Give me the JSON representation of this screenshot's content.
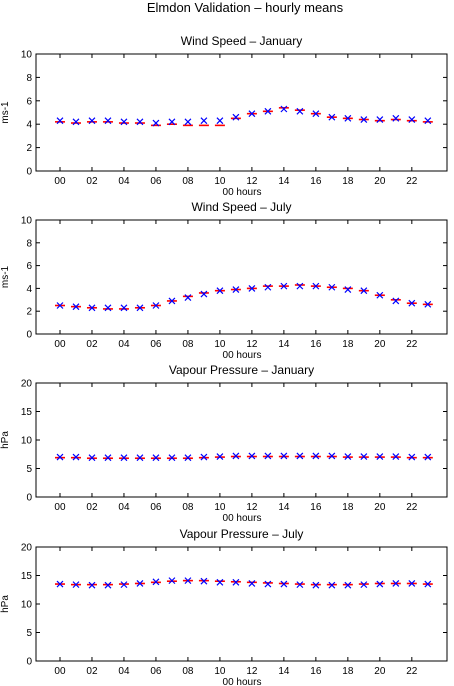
{
  "figure": {
    "title": "Elmdon Validation – hourly means"
  },
  "colors": {
    "series_a": "#ff0000",
    "series_b": "#0000ff",
    "axis": "#000000"
  },
  "chart_data": [
    {
      "type": "scatter",
      "title": "Wind Speed – January",
      "xlabel": "00 hours",
      "ylabel": "ms-1",
      "xlim": [
        -1.5,
        24.2
      ],
      "ylim": [
        0,
        10
      ],
      "yticks": [
        0,
        2,
        4,
        6,
        8,
        10
      ],
      "xticks": [
        0,
        2,
        4,
        6,
        8,
        10,
        12,
        14,
        16,
        18,
        20,
        22
      ],
      "xtick_labels": [
        "00",
        "02",
        "04",
        "06",
        "08",
        "10",
        "12",
        "14",
        "16",
        "18",
        "20",
        "22"
      ],
      "x": [
        0,
        1,
        2,
        3,
        4,
        5,
        6,
        7,
        8,
        9,
        10,
        11,
        12,
        13,
        14,
        15,
        16,
        17,
        18,
        19,
        20,
        21,
        22,
        23
      ],
      "series": [
        {
          "values": [
            4.2,
            4.1,
            4.2,
            4.2,
            4.1,
            4.1,
            3.9,
            4.0,
            3.9,
            3.9,
            3.9,
            4.5,
            4.9,
            5.1,
            5.4,
            5.2,
            4.9,
            4.6,
            4.5,
            4.4,
            4.3,
            4.4,
            4.3,
            4.2
          ],
          "color": "#ff0000",
          "marker": "line"
        },
        {
          "values": [
            4.3,
            4.2,
            4.3,
            4.3,
            4.2,
            4.2,
            4.1,
            4.2,
            4.2,
            4.3,
            4.3,
            4.6,
            4.9,
            5.1,
            5.3,
            5.1,
            4.9,
            4.6,
            4.5,
            4.4,
            4.4,
            4.5,
            4.4,
            4.3
          ],
          "color": "#0000ff",
          "marker": "x"
        }
      ],
      "grid": false
    },
    {
      "type": "scatter",
      "title": "Wind Speed – July",
      "xlabel": "00 hours",
      "ylabel": "ms-1",
      "xlim": [
        -1.5,
        24.2
      ],
      "ylim": [
        0,
        10
      ],
      "yticks": [
        0,
        2,
        4,
        6,
        8,
        10
      ],
      "xticks": [
        0,
        2,
        4,
        6,
        8,
        10,
        12,
        14,
        16,
        18,
        20,
        22
      ],
      "xtick_labels": [
        "00",
        "02",
        "04",
        "06",
        "08",
        "10",
        "12",
        "14",
        "16",
        "18",
        "20",
        "22"
      ],
      "x": [
        0,
        1,
        2,
        3,
        4,
        5,
        6,
        7,
        8,
        9,
        10,
        11,
        12,
        13,
        14,
        15,
        16,
        17,
        18,
        19,
        20,
        21,
        22,
        23
      ],
      "series": [
        {
          "values": [
            2.5,
            2.4,
            2.3,
            2.2,
            2.2,
            2.3,
            2.5,
            2.9,
            3.3,
            3.6,
            3.8,
            3.9,
            4.0,
            4.2,
            4.2,
            4.3,
            4.2,
            4.1,
            4.0,
            3.8,
            3.4,
            3.0,
            2.7,
            2.6
          ],
          "color": "#ff0000",
          "marker": "line"
        },
        {
          "values": [
            2.5,
            2.4,
            2.3,
            2.3,
            2.3,
            2.3,
            2.5,
            2.9,
            3.2,
            3.5,
            3.8,
            3.9,
            4.0,
            4.1,
            4.2,
            4.2,
            4.2,
            4.1,
            3.9,
            3.8,
            3.4,
            2.9,
            2.7,
            2.6
          ],
          "color": "#0000ff",
          "marker": "x"
        }
      ],
      "grid": false
    },
    {
      "type": "scatter",
      "title": "Vapour Pressure – January",
      "xlabel": "00 hours",
      "ylabel": "hPa",
      "xlim": [
        -1.5,
        24.2
      ],
      "ylim": [
        0,
        20
      ],
      "yticks": [
        0,
        5,
        10,
        15,
        20
      ],
      "xticks": [
        0,
        2,
        4,
        6,
        8,
        10,
        12,
        14,
        16,
        18,
        20,
        22
      ],
      "xtick_labels": [
        "00",
        "02",
        "04",
        "06",
        "08",
        "10",
        "12",
        "14",
        "16",
        "18",
        "20",
        "22"
      ],
      "x": [
        0,
        1,
        2,
        3,
        4,
        5,
        6,
        7,
        8,
        9,
        10,
        11,
        12,
        13,
        14,
        15,
        16,
        17,
        18,
        19,
        20,
        21,
        22,
        23
      ],
      "series": [
        {
          "values": [
            6.9,
            6.9,
            6.8,
            6.8,
            6.8,
            6.8,
            6.8,
            6.8,
            6.8,
            6.9,
            7.0,
            7.1,
            7.1,
            7.1,
            7.1,
            7.1,
            7.1,
            7.1,
            7.0,
            7.0,
            7.0,
            7.0,
            6.9,
            6.9
          ],
          "color": "#ff0000",
          "marker": "line"
        },
        {
          "values": [
            7.0,
            7.0,
            6.9,
            6.9,
            6.9,
            6.9,
            6.9,
            6.9,
            6.9,
            7.0,
            7.1,
            7.2,
            7.2,
            7.2,
            7.2,
            7.2,
            7.2,
            7.2,
            7.1,
            7.1,
            7.1,
            7.1,
            7.0,
            7.0
          ],
          "color": "#0000ff",
          "marker": "x"
        }
      ],
      "grid": false
    },
    {
      "type": "scatter",
      "title": "Vapour Pressure – July",
      "xlabel": "00 hours",
      "ylabel": "hPa",
      "xlim": [
        -1.5,
        24.2
      ],
      "ylim": [
        0,
        20
      ],
      "yticks": [
        0,
        5,
        10,
        15,
        20
      ],
      "xticks": [
        0,
        2,
        4,
        6,
        8,
        10,
        12,
        14,
        16,
        18,
        20,
        22
      ],
      "xtick_labels": [
        "00",
        "02",
        "04",
        "06",
        "08",
        "10",
        "12",
        "14",
        "16",
        "18",
        "20",
        "22"
      ],
      "x": [
        0,
        1,
        2,
        3,
        4,
        5,
        6,
        7,
        8,
        9,
        10,
        11,
        12,
        13,
        14,
        15,
        16,
        17,
        18,
        19,
        20,
        21,
        22,
        23
      ],
      "series": [
        {
          "values": [
            13.5,
            13.4,
            13.4,
            13.4,
            13.5,
            13.6,
            13.8,
            14.0,
            14.1,
            14.1,
            14.0,
            13.9,
            13.8,
            13.7,
            13.6,
            13.5,
            13.4,
            13.4,
            13.4,
            13.5,
            13.6,
            13.6,
            13.6,
            13.5
          ],
          "color": "#ff0000",
          "marker": "line"
        },
        {
          "values": [
            13.5,
            13.4,
            13.3,
            13.3,
            13.4,
            13.6,
            13.9,
            14.1,
            14.1,
            14.0,
            13.8,
            13.8,
            13.6,
            13.5,
            13.5,
            13.4,
            13.3,
            13.3,
            13.3,
            13.4,
            13.5,
            13.6,
            13.6,
            13.5
          ],
          "color": "#0000ff",
          "marker": "x"
        }
      ],
      "grid": false
    }
  ]
}
